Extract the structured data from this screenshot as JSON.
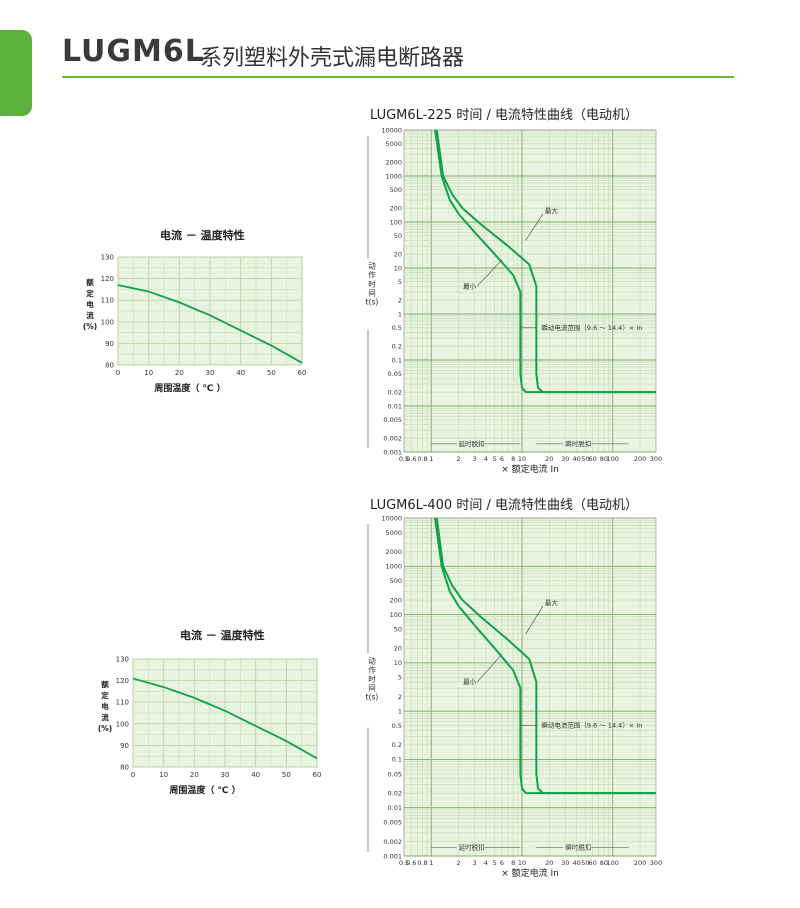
{
  "header": {
    "logo": "LUGM6L",
    "title": "系列塑料外壳式漏电断路器"
  },
  "colors": {
    "accent": "#5bb13b",
    "grid_bg": "#e8f3e0",
    "grid_line": "#b9d6a8",
    "curve": "#12a34a"
  },
  "chart_data": [
    {
      "type": "line",
      "title": "电流 － 温度特性",
      "xlabel": "周围温度（ ℃ ）",
      "ylabel": [
        "额",
        "定",
        "电",
        "流",
        "(%)"
      ],
      "xlim": [
        0,
        60
      ],
      "ylim": [
        80,
        130
      ],
      "xticks": [
        "0",
        "10",
        "20",
        "30",
        "40",
        "50",
        "60"
      ],
      "yticks": [
        "80",
        "90",
        "100",
        "110",
        "120",
        "130"
      ],
      "series": [
        {
          "x": [
            0,
            10,
            20,
            30,
            40,
            50,
            60
          ],
          "values": [
            117,
            114,
            109,
            103,
            96,
            89,
            81
          ]
        }
      ]
    },
    {
      "type": "line",
      "title": "LUGM6L-225 时间 / 电流特性曲线（电动机）",
      "xlabel": "× 额定电流  In",
      "ylabel": [
        "动",
        "作",
        "时",
        "间",
        "t(s)"
      ],
      "log_scale": true,
      "xlim": [
        0.5,
        300
      ],
      "ylim": [
        0.001,
        10000
      ],
      "xticks": [
        "0.5",
        "0.6",
        "0.8",
        "1",
        "2",
        "3",
        "4",
        "5",
        "6",
        "8",
        "10",
        "20",
        "30",
        "40",
        "50",
        "60",
        "80",
        "100",
        "200",
        "300"
      ],
      "yticks": [
        "0.001",
        "0.002",
        "0.005",
        "0.01",
        "0.02",
        "0.05",
        "0.1",
        "0.2",
        "0.5",
        "1",
        "2",
        "5",
        "10",
        "20",
        "50",
        "100",
        "200",
        "500",
        "1000",
        "2000",
        "5000",
        "10000"
      ],
      "annotations": {
        "max": "最大",
        "min": "最小",
        "instant_range": "瞬动电流范围（9.6 ～ 14.4）× In",
        "delay_trip": "延时脱扣",
        "instant_trip": "瞬时脱扣"
      },
      "series": [
        {
          "name": "最小",
          "x": [
            1.1,
            1.3,
            1.6,
            2,
            3,
            5,
            8,
            9.6,
            9.6,
            10,
            11,
            20,
            300
          ],
          "values": [
            10000,
            1000,
            300,
            150,
            60,
            20,
            7,
            3,
            0.05,
            0.025,
            0.02,
            0.02,
            0.02
          ]
        },
        {
          "name": "最大",
          "x": [
            1.15,
            1.35,
            1.7,
            2.2,
            3.5,
            7,
            12,
            14.4,
            14.4,
            15,
            17,
            20,
            300
          ],
          "values": [
            10000,
            1000,
            400,
            200,
            90,
            30,
            12,
            4,
            0.05,
            0.025,
            0.02,
            0.02,
            0.02
          ]
        }
      ]
    },
    {
      "type": "line",
      "title": "电流 － 温度特性",
      "xlabel": "周围温度（ ℃ ）",
      "ylabel": [
        "额",
        "定",
        "电",
        "流",
        "(%)"
      ],
      "xlim": [
        0,
        60
      ],
      "ylim": [
        80,
        130
      ],
      "xticks": [
        "0",
        "10",
        "20",
        "30",
        "40",
        "50",
        "60"
      ],
      "yticks": [
        "80",
        "90",
        "100",
        "110",
        "120",
        "130"
      ],
      "series": [
        {
          "x": [
            0,
            10,
            20,
            30,
            40,
            50,
            60
          ],
          "values": [
            121,
            117,
            112,
            106,
            99,
            92,
            84
          ]
        }
      ]
    },
    {
      "type": "line",
      "title": "LUGM6L-400 时间 / 电流特性曲线（电动机）",
      "xlabel": "× 额定电流  In",
      "ylabel": [
        "动",
        "作",
        "时",
        "间",
        "t(s)"
      ],
      "log_scale": true,
      "xlim": [
        0.5,
        300
      ],
      "ylim": [
        0.001,
        10000
      ],
      "xticks": [
        "0.5",
        "0.6",
        "0.8",
        "1",
        "2",
        "3",
        "4",
        "5",
        "6",
        "8",
        "10",
        "20",
        "30",
        "40",
        "50",
        "60",
        "80",
        "100",
        "200",
        "300"
      ],
      "yticks": [
        "0.001",
        "0.002",
        "0.005",
        "0.01",
        "0.02",
        "0.05",
        "0.1",
        "0.2",
        "0.5",
        "1",
        "2",
        "5",
        "10",
        "20",
        "50",
        "100",
        "200",
        "500",
        "1000",
        "2000",
        "5000",
        "10000"
      ],
      "annotations": {
        "max": "最大",
        "min": "最小",
        "instant_range": "瞬动电流范围（9.6 ～ 14.4）× In",
        "delay_trip": "延时脱扣",
        "instant_trip": "瞬时脱扣"
      },
      "series": [
        {
          "name": "最小",
          "x": [
            1.1,
            1.3,
            1.6,
            2,
            3,
            5,
            8,
            9.6,
            9.6,
            10,
            11,
            20,
            300
          ],
          "values": [
            10000,
            1000,
            300,
            150,
            60,
            20,
            7,
            3,
            0.05,
            0.025,
            0.02,
            0.02,
            0.02
          ]
        },
        {
          "name": "最大",
          "x": [
            1.15,
            1.35,
            1.7,
            2.2,
            3.5,
            7,
            12,
            14.4,
            14.4,
            15,
            17,
            20,
            300
          ],
          "values": [
            10000,
            1000,
            400,
            200,
            90,
            30,
            12,
            4,
            0.05,
            0.025,
            0.02,
            0.02,
            0.02
          ]
        }
      ]
    }
  ]
}
